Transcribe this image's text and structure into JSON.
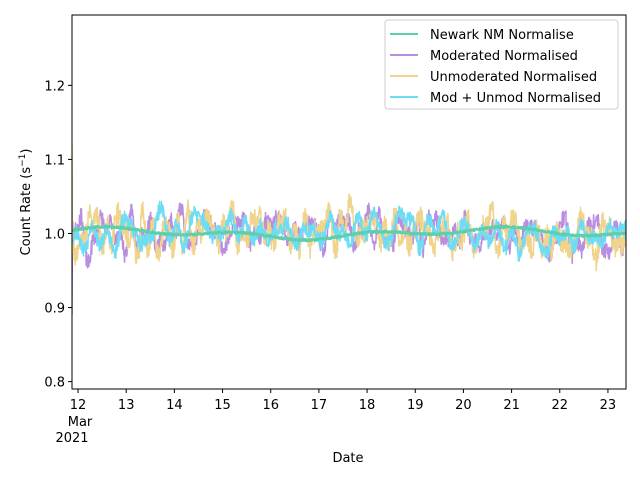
{
  "chart_data": {
    "type": "line",
    "xlabel": "Date",
    "ylabel": "Count Rate (s",
    "ylabel_exp": "−1",
    "ylabel_close": ")",
    "x_tick_labels": [
      "12",
      "13",
      "14",
      "15",
      "16",
      "17",
      "18",
      "19",
      "20",
      "21",
      "22",
      "23"
    ],
    "x_tick_days": [
      12,
      13,
      14,
      15,
      16,
      17,
      18,
      19,
      20,
      21,
      22,
      23
    ],
    "x_month_label": "Mar",
    "x_year_label": "2021",
    "xlim": [
      "2021-03-11T21:00",
      "2021-03-23T09:00"
    ],
    "ylim": [
      0.79,
      1.295
    ],
    "y_ticks": [
      0.8,
      0.9,
      1.0,
      1.1,
      1.2
    ],
    "y_tick_labels": [
      "0.8",
      "0.9",
      "1.0",
      "1.1",
      "1.2"
    ],
    "legend_position": "top-right",
    "series": [
      {
        "name": "Newark NM Normalise",
        "color": "#5dcfaa",
        "base": 1.0,
        "amp": 0.006,
        "noise": 0.003,
        "width": 2.2,
        "seed": 11
      },
      {
        "name": "Moderated Normalised",
        "color": "#b98ee0",
        "base": 1.0,
        "amp": 0.03,
        "noise": 0.012,
        "width": 1.5,
        "seed": 23
      },
      {
        "name": "Unmoderated Normalised",
        "color": "#f0d48c",
        "base": 1.0,
        "amp": 0.035,
        "noise": 0.016,
        "width": 1.5,
        "seed": 37
      },
      {
        "name": "Mod + Unmod Normalised",
        "color": "#6fdcf5",
        "base": 1.0,
        "amp": 0.028,
        "noise": 0.011,
        "width": 1.5,
        "seed": 53
      }
    ]
  }
}
